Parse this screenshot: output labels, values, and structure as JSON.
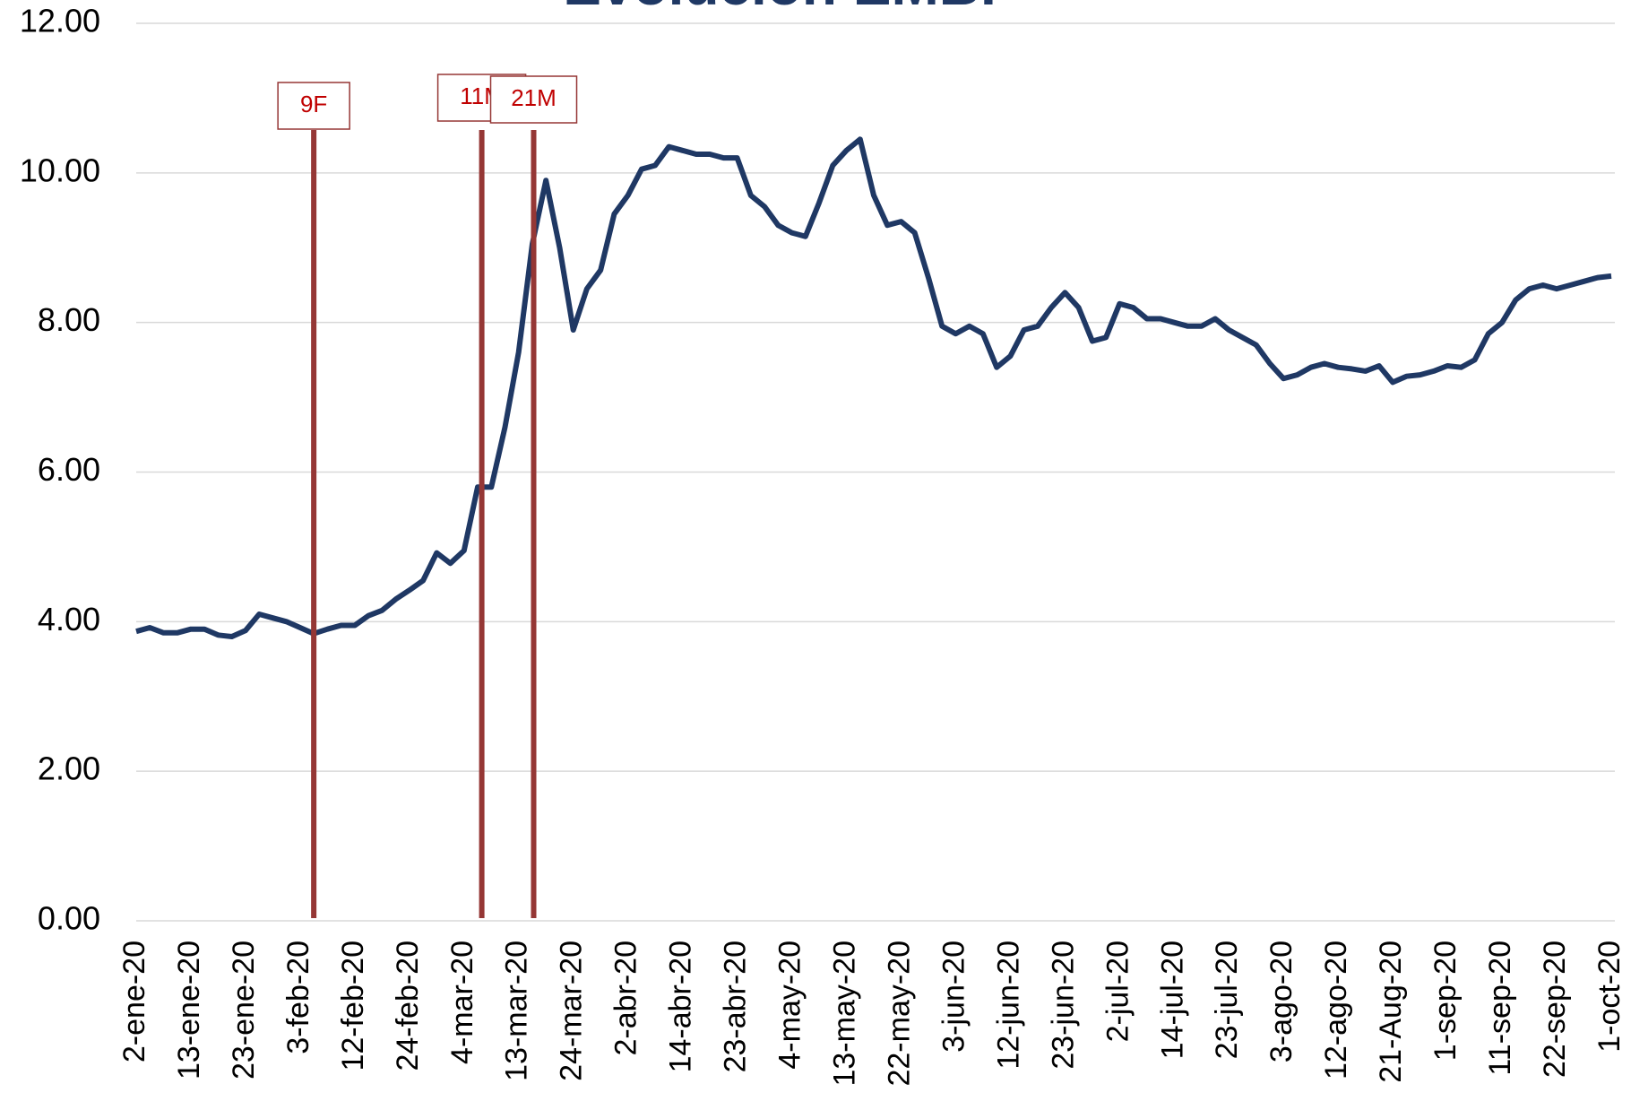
{
  "chart_data": {
    "type": "line",
    "title": "Evolución EMBI",
    "categories": [
      "2-ene-20",
      null,
      null,
      null,
      "13-ene-20",
      null,
      null,
      null,
      "23-ene-20",
      null,
      null,
      null,
      "3-feb-20",
      null,
      null,
      null,
      "12-feb-20",
      null,
      null,
      null,
      "24-feb-20",
      null,
      null,
      null,
      "4-mar-20",
      null,
      null,
      null,
      "13-mar-20",
      null,
      null,
      null,
      "24-mar-20",
      null,
      null,
      null,
      "2-abr-20",
      null,
      null,
      null,
      "14-abr-20",
      null,
      null,
      null,
      "23-abr-20",
      null,
      null,
      null,
      "4-may-20",
      null,
      null,
      null,
      "13-may-20",
      null,
      null,
      null,
      "22-may-20",
      null,
      null,
      null,
      "3-jun-20",
      null,
      null,
      null,
      "12-jun-20",
      null,
      null,
      null,
      "23-jun-20",
      null,
      null,
      null,
      "2-jul-20",
      null,
      null,
      null,
      "14-jul-20",
      null,
      null,
      null,
      "23-jul-20",
      null,
      null,
      null,
      "3-ago-20",
      null,
      null,
      null,
      "12-ago-20",
      null,
      null,
      null,
      "21-Aug-20",
      null,
      null,
      null,
      "1-sep-20",
      null,
      null,
      null,
      "11-sep-20",
      null,
      null,
      null,
      "22-sep-20",
      null,
      null,
      null,
      "1-oct-20"
    ],
    "series": [
      {
        "name": "EMBI",
        "color": "#1f3864",
        "values": [
          3.87,
          3.92,
          3.85,
          3.85,
          3.9,
          3.9,
          3.82,
          3.8,
          3.88,
          4.1,
          4.05,
          4.0,
          3.92,
          3.84,
          3.9,
          3.95,
          3.95,
          4.08,
          4.15,
          4.3,
          4.42,
          4.55,
          4.92,
          4.78,
          4.95,
          5.8,
          5.8,
          6.6,
          7.6,
          9.05,
          9.9,
          9.0,
          7.9,
          8.45,
          8.7,
          9.45,
          9.7,
          10.05,
          10.1,
          10.35,
          10.3,
          10.25,
          10.25,
          10.2,
          10.2,
          9.7,
          9.55,
          9.3,
          9.2,
          9.15,
          9.6,
          10.1,
          10.3,
          10.45,
          9.7,
          9.3,
          9.35,
          9.2,
          8.6,
          7.95,
          7.85,
          7.95,
          7.85,
          7.4,
          7.55,
          7.9,
          7.95,
          8.2,
          8.4,
          8.2,
          7.75,
          7.8,
          8.25,
          8.2,
          8.05,
          8.05,
          8.0,
          7.95,
          7.95,
          8.05,
          7.9,
          7.8,
          7.7,
          7.45,
          7.25,
          7.3,
          7.4,
          7.45,
          7.4,
          7.38,
          7.35,
          7.42,
          7.2,
          7.28,
          7.3,
          7.35,
          7.42,
          7.4,
          7.5,
          7.85,
          8.0,
          8.3,
          8.45,
          8.5,
          8.45,
          8.5,
          8.55,
          8.6,
          8.62
        ]
      }
    ],
    "ylim": [
      0,
      12
    ],
    "yticks": [
      {
        "value": 0,
        "label": "0.00"
      },
      {
        "value": 2,
        "label": "2.00"
      },
      {
        "value": 4,
        "label": "4.00"
      },
      {
        "value": 6,
        "label": "6.00"
      },
      {
        "value": 8,
        "label": "8.00"
      },
      {
        "value": 10,
        "label": "10.00"
      },
      {
        "value": 12,
        "label": "12.00"
      }
    ],
    "grid": true,
    "annotations": [
      "9F",
      "11M",
      "21M"
    ]
  }
}
